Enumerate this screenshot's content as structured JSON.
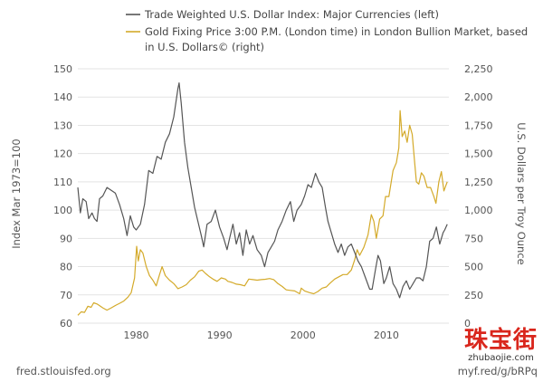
{
  "chart_data": {
    "type": "line",
    "legend_placement": "top",
    "grid": "horizontal",
    "xlim": [
      1973,
      2017.5
    ],
    "x_ticks": [
      "1980",
      "1990",
      "2000",
      "2010"
    ],
    "y_left": {
      "label": "Index Mar 1973=100",
      "lim": [
        60,
        150
      ],
      "ticks": [
        "60",
        "70",
        "80",
        "90",
        "100",
        "110",
        "120",
        "130",
        "140",
        "150"
      ]
    },
    "y_right": {
      "label": "U.S. Dollars per Troy Ounce",
      "lim": [
        0,
        2250
      ],
      "ticks": [
        "0",
        "250",
        "500",
        "750",
        "1,000",
        "1,250",
        "1,500",
        "1,750",
        "2,000",
        "2,250"
      ]
    },
    "series": [
      {
        "name": "Trade Weighted U.S. Dollar Index: Major Currencies (left)",
        "axis": "left",
        "color": "#555555",
        "points": [
          [
            1973.0,
            108
          ],
          [
            1973.3,
            99
          ],
          [
            1973.6,
            104
          ],
          [
            1974.0,
            103
          ],
          [
            1974.3,
            97
          ],
          [
            1974.7,
            99
          ],
          [
            1975.0,
            97
          ],
          [
            1975.3,
            96
          ],
          [
            1975.6,
            104
          ],
          [
            1976.0,
            105
          ],
          [
            1976.5,
            108
          ],
          [
            1977.0,
            107
          ],
          [
            1977.5,
            106
          ],
          [
            1978.0,
            102
          ],
          [
            1978.5,
            97
          ],
          [
            1978.9,
            91
          ],
          [
            1979.3,
            98
          ],
          [
            1979.7,
            94
          ],
          [
            1980.0,
            93
          ],
          [
            1980.5,
            95
          ],
          [
            1981.0,
            102
          ],
          [
            1981.5,
            114
          ],
          [
            1982.0,
            113
          ],
          [
            1982.5,
            119
          ],
          [
            1983.0,
            118
          ],
          [
            1983.5,
            124
          ],
          [
            1984.0,
            127
          ],
          [
            1984.5,
            133
          ],
          [
            1985.0,
            143
          ],
          [
            1985.15,
            145
          ],
          [
            1985.4,
            138
          ],
          [
            1985.8,
            124
          ],
          [
            1986.2,
            115
          ],
          [
            1986.6,
            108
          ],
          [
            1987.0,
            101
          ],
          [
            1987.4,
            96
          ],
          [
            1987.8,
            91
          ],
          [
            1988.1,
            87
          ],
          [
            1988.5,
            95
          ],
          [
            1989.0,
            96
          ],
          [
            1989.5,
            100
          ],
          [
            1990.0,
            94
          ],
          [
            1990.5,
            90
          ],
          [
            1990.9,
            86
          ],
          [
            1991.2,
            90
          ],
          [
            1991.6,
            95
          ],
          [
            1992.0,
            88
          ],
          [
            1992.4,
            92
          ],
          [
            1992.8,
            84
          ],
          [
            1993.2,
            93
          ],
          [
            1993.6,
            88
          ],
          [
            1994.0,
            91
          ],
          [
            1994.5,
            86
          ],
          [
            1995.0,
            84
          ],
          [
            1995.4,
            80
          ],
          [
            1995.8,
            85
          ],
          [
            1996.2,
            87
          ],
          [
            1996.6,
            89
          ],
          [
            1997.0,
            93
          ],
          [
            1997.5,
            96
          ],
          [
            1998.0,
            100
          ],
          [
            1998.5,
            103
          ],
          [
            1998.9,
            96
          ],
          [
            1999.3,
            100
          ],
          [
            1999.8,
            102
          ],
          [
            2000.2,
            105
          ],
          [
            2000.6,
            109
          ],
          [
            2001.0,
            108
          ],
          [
            2001.5,
            113
          ],
          [
            2001.9,
            110
          ],
          [
            2002.3,
            108
          ],
          [
            2002.7,
            101
          ],
          [
            2003.0,
            96
          ],
          [
            2003.4,
            92
          ],
          [
            2003.8,
            88
          ],
          [
            2004.2,
            85
          ],
          [
            2004.6,
            88
          ],
          [
            2005.0,
            84
          ],
          [
            2005.4,
            87
          ],
          [
            2005.8,
            88
          ],
          [
            2006.2,
            85
          ],
          [
            2006.6,
            82
          ],
          [
            2007.0,
            80
          ],
          [
            2007.5,
            76
          ],
          [
            2008.0,
            72
          ],
          [
            2008.3,
            72
          ],
          [
            2008.7,
            79
          ],
          [
            2009.0,
            84
          ],
          [
            2009.3,
            82
          ],
          [
            2009.7,
            74
          ],
          [
            2010.0,
            76
          ],
          [
            2010.4,
            80
          ],
          [
            2010.8,
            74
          ],
          [
            2011.2,
            72
          ],
          [
            2011.6,
            69
          ],
          [
            2012.0,
            73
          ],
          [
            2012.4,
            75
          ],
          [
            2012.8,
            72
          ],
          [
            2013.2,
            74
          ],
          [
            2013.6,
            76
          ],
          [
            2014.0,
            76
          ],
          [
            2014.4,
            75
          ],
          [
            2014.8,
            80
          ],
          [
            2015.2,
            89
          ],
          [
            2015.6,
            90
          ],
          [
            2016.0,
            94
          ],
          [
            2016.4,
            88
          ],
          [
            2016.8,
            92
          ],
          [
            2017.0,
            93
          ],
          [
            2017.3,
            95
          ]
        ]
      },
      {
        "name": "Gold Fixing Price 3:00 P.M. (London time) in London Bullion Market, based in U.S. Dollars© (right)",
        "axis": "right",
        "color": "#d4aa2a",
        "points": [
          [
            1973.0,
            70
          ],
          [
            1973.4,
            100
          ],
          [
            1973.8,
            95
          ],
          [
            1974.2,
            150
          ],
          [
            1974.6,
            140
          ],
          [
            1974.9,
            180
          ],
          [
            1975.3,
            170
          ],
          [
            1975.7,
            150
          ],
          [
            1976.0,
            135
          ],
          [
            1976.5,
            115
          ],
          [
            1977.0,
            135
          ],
          [
            1977.6,
            160
          ],
          [
            1978.0,
            175
          ],
          [
            1978.5,
            195
          ],
          [
            1979.0,
            230
          ],
          [
            1979.4,
            270
          ],
          [
            1979.8,
            400
          ],
          [
            1980.05,
            680
          ],
          [
            1980.25,
            550
          ],
          [
            1980.5,
            650
          ],
          [
            1980.8,
            620
          ],
          [
            1981.2,
            500
          ],
          [
            1981.6,
            420
          ],
          [
            1982.0,
            380
          ],
          [
            1982.4,
            330
          ],
          [
            1982.8,
            430
          ],
          [
            1983.1,
            500
          ],
          [
            1983.5,
            420
          ],
          [
            1984.0,
            380
          ],
          [
            1984.5,
            350
          ],
          [
            1985.0,
            305
          ],
          [
            1985.5,
            320
          ],
          [
            1986.0,
            340
          ],
          [
            1986.5,
            380
          ],
          [
            1987.0,
            410
          ],
          [
            1987.5,
            460
          ],
          [
            1987.9,
            470
          ],
          [
            1988.3,
            440
          ],
          [
            1988.8,
            410
          ],
          [
            1989.2,
            390
          ],
          [
            1989.7,
            370
          ],
          [
            1990.2,
            400
          ],
          [
            1990.7,
            390
          ],
          [
            1991.0,
            370
          ],
          [
            1991.5,
            360
          ],
          [
            1992.0,
            345
          ],
          [
            1992.5,
            340
          ],
          [
            1993.0,
            330
          ],
          [
            1993.5,
            390
          ],
          [
            1994.0,
            385
          ],
          [
            1994.5,
            380
          ],
          [
            1995.0,
            385
          ],
          [
            1995.5,
            388
          ],
          [
            1996.0,
            395
          ],
          [
            1996.5,
            385
          ],
          [
            1997.0,
            350
          ],
          [
            1997.5,
            325
          ],
          [
            1998.0,
            295
          ],
          [
            1998.5,
            290
          ],
          [
            1999.0,
            285
          ],
          [
            1999.6,
            260
          ],
          [
            1999.8,
            310
          ],
          [
            2000.2,
            285
          ],
          [
            2000.8,
            270
          ],
          [
            2001.3,
            260
          ],
          [
            2001.8,
            280
          ],
          [
            2002.3,
            310
          ],
          [
            2002.8,
            320
          ],
          [
            2003.2,
            350
          ],
          [
            2003.8,
            390
          ],
          [
            2004.3,
            410
          ],
          [
            2004.8,
            430
          ],
          [
            2005.3,
            430
          ],
          [
            2005.8,
            470
          ],
          [
            2006.2,
            560
          ],
          [
            2006.5,
            650
          ],
          [
            2006.8,
            600
          ],
          [
            2007.3,
            670
          ],
          [
            2007.8,
            780
          ],
          [
            2008.2,
            960
          ],
          [
            2008.5,
            900
          ],
          [
            2008.8,
            750
          ],
          [
            2009.2,
            920
          ],
          [
            2009.6,
            950
          ],
          [
            2009.9,
            1120
          ],
          [
            2010.3,
            1120
          ],
          [
            2010.8,
            1350
          ],
          [
            2011.2,
            1420
          ],
          [
            2011.5,
            1550
          ],
          [
            2011.65,
            1880
          ],
          [
            2011.9,
            1650
          ],
          [
            2012.2,
            1700
          ],
          [
            2012.5,
            1600
          ],
          [
            2012.8,
            1750
          ],
          [
            2013.1,
            1670
          ],
          [
            2013.4,
            1420
          ],
          [
            2013.6,
            1250
          ],
          [
            2013.9,
            1230
          ],
          [
            2014.2,
            1330
          ],
          [
            2014.5,
            1300
          ],
          [
            2014.9,
            1200
          ],
          [
            2015.3,
            1200
          ],
          [
            2015.7,
            1120
          ],
          [
            2015.95,
            1060
          ],
          [
            2016.3,
            1250
          ],
          [
            2016.6,
            1340
          ],
          [
            2016.9,
            1170
          ],
          [
            2017.1,
            1210
          ],
          [
            2017.3,
            1250
          ]
        ]
      }
    ]
  },
  "source_left": "fred.stlouisfed.org",
  "source_right": "myf.red/g/bRPq",
  "watermark": {
    "chinese": "珠宝街",
    "domain": "zhubaojie.com"
  }
}
